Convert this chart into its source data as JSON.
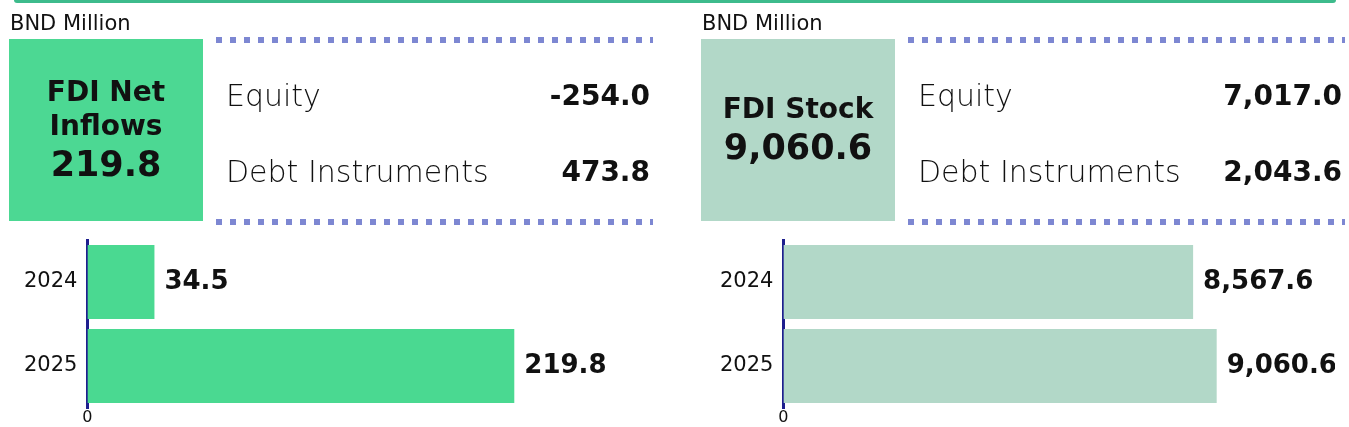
{
  "chart_data": [
    {
      "type": "other",
      "subtitle": "BND Million",
      "title": "FDI Net Inflows",
      "annotations": [
        "219.8",
        "Equity",
        "-254.0",
        "Debt Instruments",
        "473.8"
      ],
      "color": "#4cd893"
    },
    {
      "type": "bar",
      "orientation": "horizontal",
      "categories": [
        "2024",
        "2025"
      ],
      "values": [
        34.5,
        219.8
      ],
      "color": "#4ad991",
      "data_labels": true,
      "annotations": [
        "0"
      ]
    },
    {
      "type": "other",
      "subtitle": "BND Million",
      "title": "FDI Stock",
      "annotations": [
        "9,060.6",
        "Equity",
        "7,017.0",
        "Debt Instruments",
        "2,043.6"
      ],
      "color": "#b2d8c8"
    },
    {
      "type": "bar",
      "orientation": "horizontal",
      "categories": [
        "2024",
        "2025"
      ],
      "values": [
        8567.6,
        9060.6
      ],
      "value_labels": [
        "8,567.6",
        "9,060.6"
      ],
      "color": "#b2d8c8",
      "annotations": [
        "0"
      ]
    }
  ]
}
